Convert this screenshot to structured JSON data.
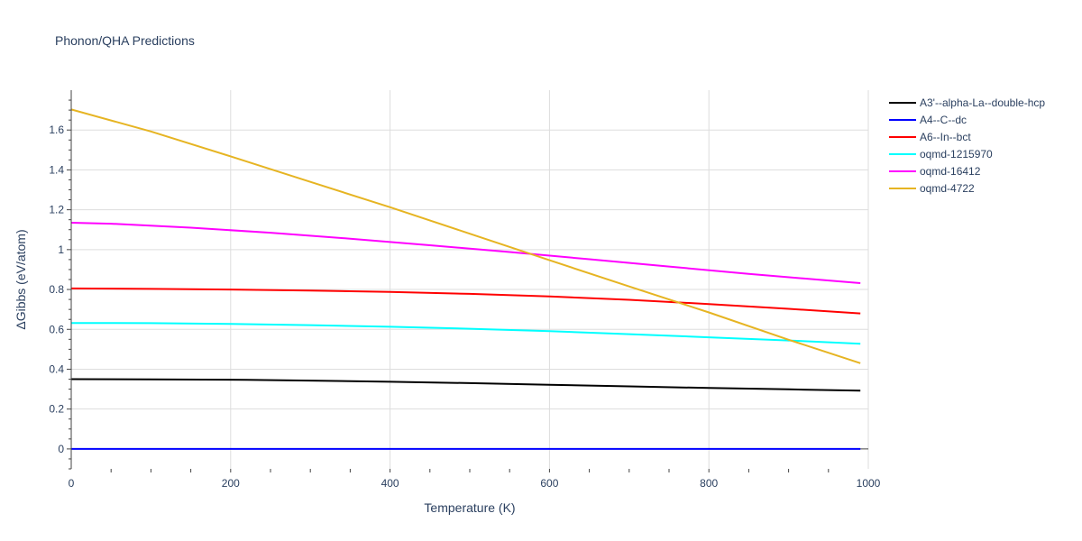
{
  "chart_data": {
    "type": "line",
    "title": "Phonon/QHA Predictions",
    "xlabel": "Temperature (K)",
    "ylabel": "ΔGibbs (eV/atom)",
    "xlim": [
      0,
      1000
    ],
    "ylim": [
      -0.1,
      1.8
    ],
    "xticks": [
      0,
      200,
      400,
      600,
      800,
      1000
    ],
    "xtick_labels": [
      "0",
      "200",
      "400",
      "600",
      "800",
      "1000"
    ],
    "yticks": [
      0,
      0.2,
      0.4,
      0.6,
      0.8,
      1,
      1.2,
      1.4,
      1.6
    ],
    "ytick_labels": [
      "0",
      "0.2",
      "0.4",
      "0.6",
      "0.8",
      "1",
      "1.2",
      "1.4",
      "1.6"
    ],
    "grid": true,
    "legend_position": "right",
    "series": [
      {
        "name": "A3'--alpha-La--double-hcp",
        "color": "#000000",
        "x": [
          0,
          100,
          220,
          300,
          400,
          500,
          600,
          700,
          800,
          900,
          990
        ],
        "y": [
          0.35,
          0.349,
          0.347,
          0.343,
          0.337,
          0.33,
          0.322,
          0.314,
          0.306,
          0.299,
          0.292
        ]
      },
      {
        "name": "A4--C--dc",
        "color": "#0000ff",
        "x": [
          0,
          990
        ],
        "y": [
          0,
          0
        ]
      },
      {
        "name": "A6--In--bct",
        "color": "#ff0000",
        "x": [
          0,
          100,
          200,
          300,
          400,
          500,
          600,
          700,
          800,
          900,
          990
        ],
        "y": [
          0.805,
          0.803,
          0.8,
          0.795,
          0.788,
          0.778,
          0.765,
          0.748,
          0.727,
          0.703,
          0.68
        ]
      },
      {
        "name": "oqmd-1215970",
        "color": "#00ffff",
        "x": [
          0,
          100,
          200,
          300,
          400,
          500,
          600,
          700,
          800,
          900,
          990
        ],
        "y": [
          0.632,
          0.631,
          0.627,
          0.621,
          0.613,
          0.603,
          0.591,
          0.576,
          0.56,
          0.544,
          0.528
        ]
      },
      {
        "name": "oqmd-16412",
        "color": "#ff00ff",
        "x": [
          0,
          50,
          150,
          250,
          350,
          450,
          550,
          650,
          750,
          850,
          990
        ],
        "y": [
          1.135,
          1.13,
          1.11,
          1.085,
          1.055,
          1.022,
          0.988,
          0.952,
          0.915,
          0.878,
          0.832
        ]
      },
      {
        "name": "oqmd-4722",
        "color": "#e6b422",
        "x": [
          0,
          100,
          200,
          300,
          400,
          500,
          600,
          700,
          800,
          900,
          990
        ],
        "y": [
          1.703,
          1.593,
          1.468,
          1.34,
          1.213,
          1.08,
          0.947,
          0.815,
          0.685,
          0.548,
          0.43
        ]
      }
    ]
  }
}
